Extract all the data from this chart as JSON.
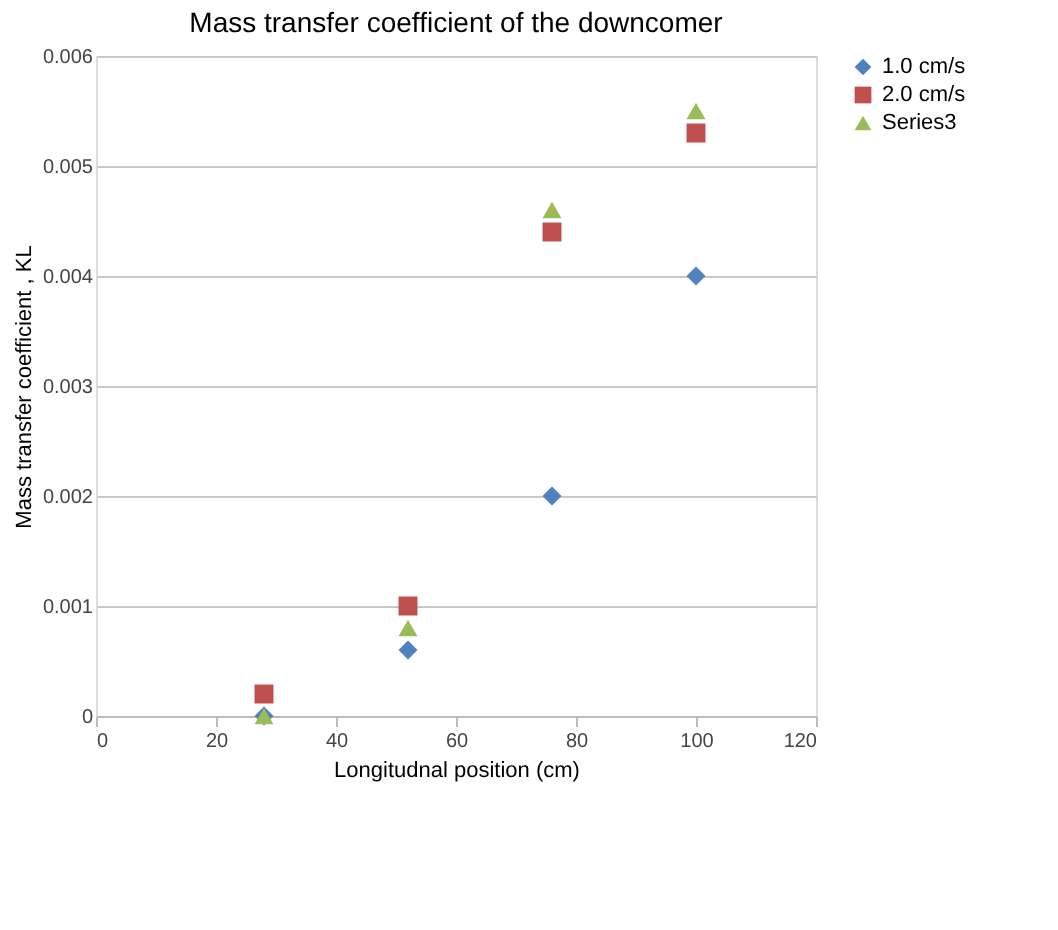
{
  "chart_data": {
    "type": "scatter",
    "title": "Mass transfer coefficient  of the downcomer",
    "xlabel": "Longitudnal position (cm)",
    "ylabel": "Mass transfer coefficient , KL",
    "x": [
      28,
      52,
      76,
      100
    ],
    "series": [
      {
        "name": "1.0 cm/s",
        "color": "#4f81bd",
        "marker": "diamond",
        "values": [
          0,
          0.0006,
          0.002,
          0.004
        ]
      },
      {
        "name": "2.0 cm/s",
        "color": "#c0504d",
        "marker": "square",
        "values": [
          0.0002,
          0.001,
          0.0044,
          0.0053
        ]
      },
      {
        "name": "Series3",
        "color": "#9bbb59",
        "marker": "triangle",
        "values": [
          0,
          0.0008,
          0.0046,
          0.0055
        ]
      }
    ],
    "xlim": [
      0,
      120
    ],
    "xticks": [
      0,
      20,
      40,
      60,
      80,
      100,
      120
    ],
    "ylim": [
      0,
      0.006
    ],
    "yticks": [
      0,
      0.001,
      0.002,
      0.003,
      0.004,
      0.005,
      0.006
    ],
    "grid": "y",
    "legend": "right"
  }
}
